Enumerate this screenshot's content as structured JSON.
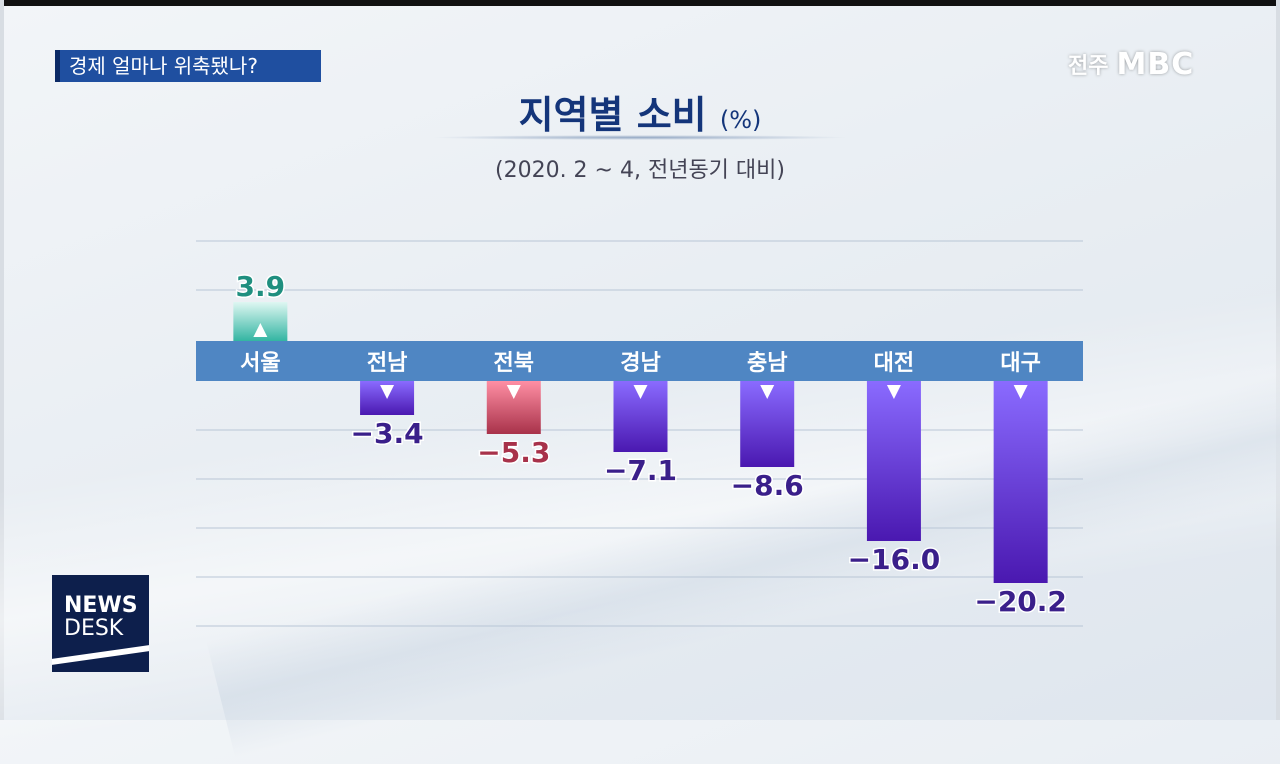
{
  "topic": "경제 얼마나 위축됐나?",
  "broadcaster": {
    "city": "전주",
    "logo": "MBC"
  },
  "newsdesk": {
    "line1": "NEWS",
    "line2": "DESK"
  },
  "chart_data": {
    "type": "bar",
    "title": "지역별 소비",
    "unit": "(%)",
    "subtitle": "(2020. 2 ~ 4, 전년동기 대비)",
    "categories": [
      "서울",
      "전남",
      "전북",
      "경남",
      "충남",
      "대전",
      "대구"
    ],
    "values": [
      3.9,
      -3.4,
      -5.3,
      -7.1,
      -8.6,
      -16.0,
      -20.2
    ],
    "value_labels": [
      "3.9",
      "−3.4",
      "−5.3",
      "−7.1",
      "−8.6",
      "−16.0",
      "−20.2"
    ],
    "colors": [
      "#33b5a2",
      "#5f2fc4",
      "#c4485f",
      "#5f2fc4",
      "#5f2fc4",
      "#5f2fc4",
      "#5f2fc4"
    ],
    "label_colors": [
      "#1f8f7f",
      "#3a1f8a",
      "#a8324a",
      "#3a1f8a",
      "#3a1f8a",
      "#3a1f8a",
      "#3a1f8a"
    ],
    "grid": true,
    "ylim": [
      -25,
      10
    ]
  }
}
